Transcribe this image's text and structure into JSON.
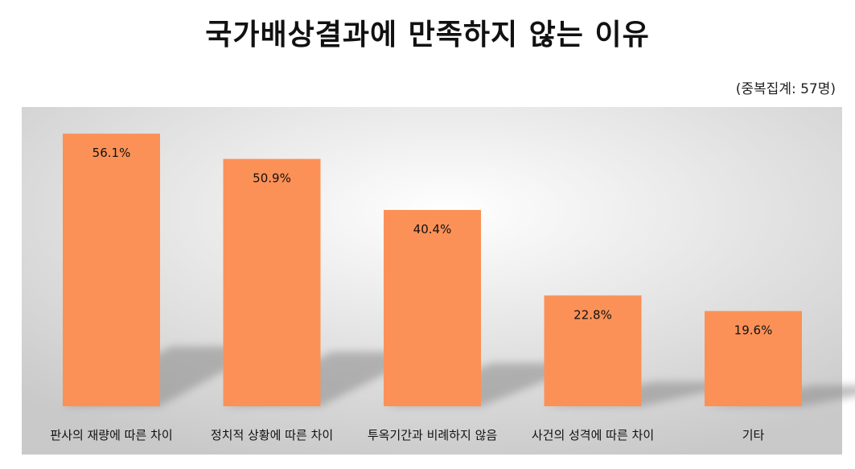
{
  "title": "국가배상결과에 만족하지 않는 이유",
  "subtitle": "(중복집계: 57명)",
  "colors": {
    "bar": "#FB9157",
    "plot_bg_light": "#FFFFFF",
    "plot_bg_dark": "#C9C9C9",
    "shadow": "#8A8A8A"
  },
  "chart_data": {
    "type": "bar",
    "title": "국가배상결과에 만족하지 않는 이유",
    "subtitle": "(중복집계: 57명)",
    "categories": [
      "판사의 재량에 따른 차이",
      "정치적 상황에 따른 차이",
      "투옥기간과 비례하지 않음",
      "사건의 성격에 따른 차이",
      "기타"
    ],
    "values": [
      56.1,
      50.9,
      40.4,
      22.8,
      19.6
    ],
    "value_labels": [
      "56.1%",
      "50.9%",
      "40.4%",
      "22.8%",
      "19.6%"
    ],
    "unit": "%",
    "ylim": [
      0,
      61
    ],
    "grid": false,
    "legend": "none"
  }
}
